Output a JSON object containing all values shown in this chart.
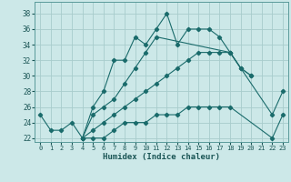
{
  "xlabel": "Humidex (Indice chaleur)",
  "background_color": "#cce8e8",
  "grid_color": "#a8cccc",
  "line_color": "#1a6b6b",
  "series1_x": [
    0,
    1,
    2,
    3,
    4,
    5,
    6,
    7,
    8,
    9,
    10,
    11,
    12,
    13,
    14,
    15,
    16,
    17,
    18,
    19,
    20
  ],
  "series1_y": [
    25,
    23,
    23,
    24,
    22,
    26,
    28,
    32,
    32,
    35,
    34,
    36,
    38,
    34,
    36,
    36,
    36,
    35,
    33,
    31,
    30
  ],
  "series2_x": [
    4,
    5,
    6,
    7,
    8,
    9,
    10,
    11,
    18,
    19,
    20,
    21,
    22,
    23
  ],
  "series2_y": [
    22,
    25,
    26,
    27,
    29,
    31,
    33,
    35,
    33,
    31,
    30,
    null,
    null,
    null
  ],
  "series3_x": [
    4,
    5,
    6,
    7,
    8,
    9,
    10,
    11,
    12,
    13,
    14,
    15,
    16,
    17,
    18,
    22,
    23
  ],
  "series3_y": [
    22,
    23,
    24,
    25,
    26,
    27,
    28,
    29,
    30,
    31,
    32,
    33,
    33,
    33,
    33,
    25,
    28
  ],
  "series4_x": [
    4,
    5,
    6,
    7,
    8,
    9,
    10,
    11,
    12,
    13,
    14,
    15,
    16,
    17,
    18,
    22,
    23
  ],
  "series4_y": [
    22,
    22,
    22,
    23,
    24,
    24,
    24,
    25,
    25,
    25,
    26,
    26,
    26,
    26,
    26,
    22,
    25
  ],
  "ylim": [
    21.5,
    39.5
  ],
  "xlim": [
    -0.5,
    23.5
  ],
  "yticks": [
    22,
    24,
    26,
    28,
    30,
    32,
    34,
    36,
    38
  ],
  "xticks": [
    0,
    1,
    2,
    3,
    4,
    5,
    6,
    7,
    8,
    9,
    10,
    11,
    12,
    13,
    14,
    15,
    16,
    17,
    18,
    19,
    20,
    21,
    22,
    23
  ]
}
